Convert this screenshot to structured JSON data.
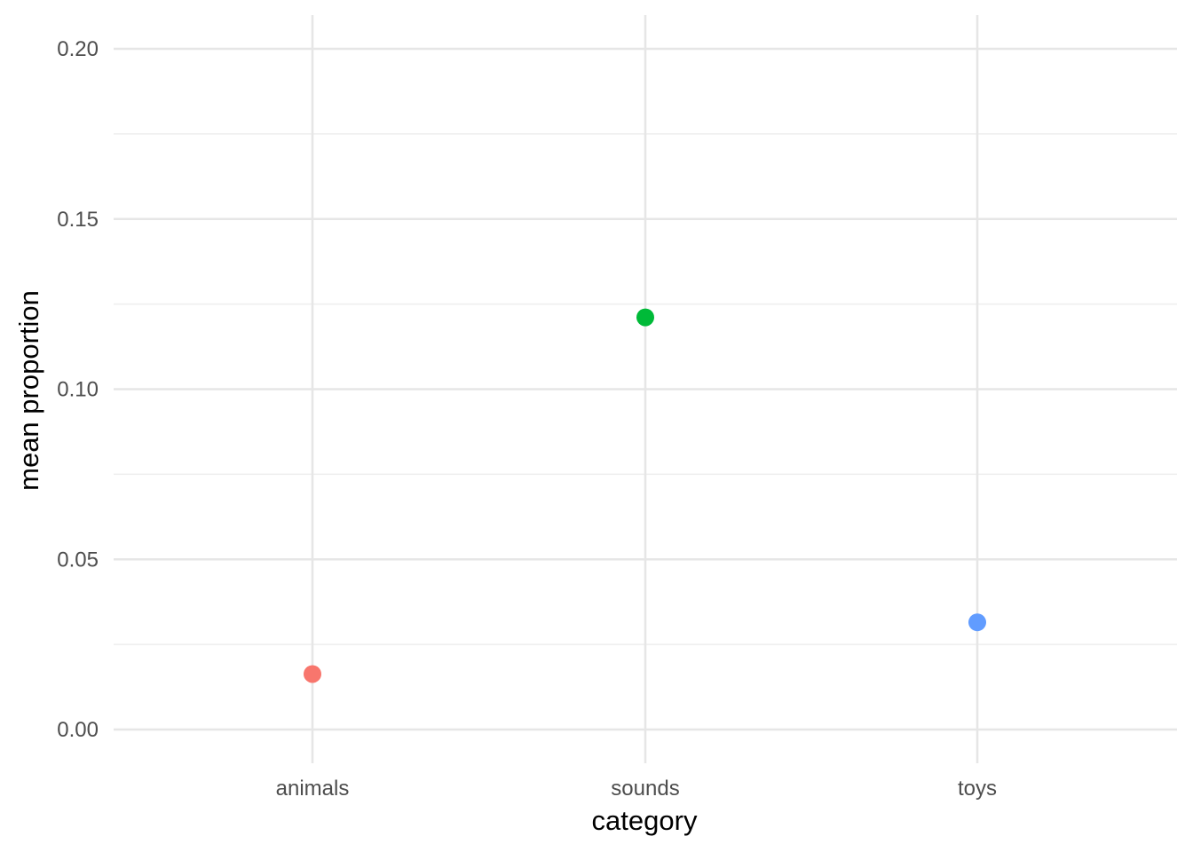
{
  "chart_data": {
    "type": "scatter",
    "categories": [
      "animals",
      "sounds",
      "toys"
    ],
    "values": [
      0.0163,
      0.1211,
      0.0315
    ],
    "colors": [
      "#F8766D",
      "#00BA38",
      "#619CFF"
    ],
    "xlabel": "category",
    "ylabel": "mean proportion",
    "ylim": [
      0,
      0.2
    ],
    "yticks": [
      "0.00",
      "0.05",
      "0.10",
      "0.15",
      "0.20"
    ],
    "grid": true,
    "legend": "none"
  }
}
